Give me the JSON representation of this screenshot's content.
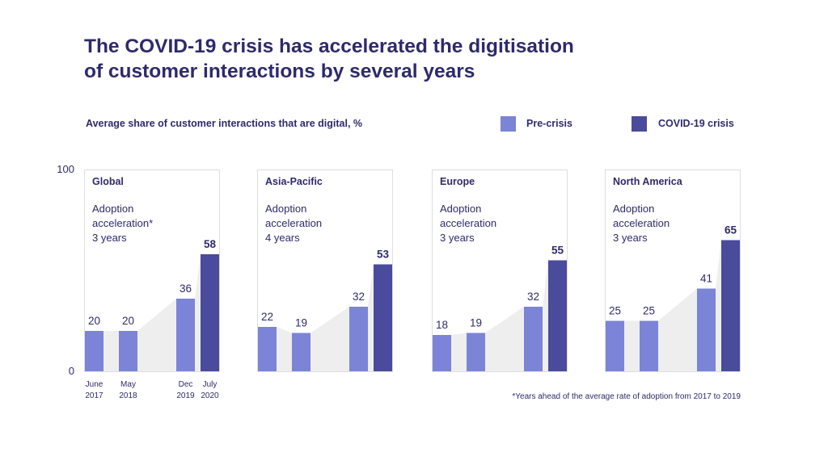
{
  "title_line1": "The COVID-19 crisis has accelerated the digitisation",
  "title_line2": "of customer interactions by several years",
  "subtitle": "Average share of customer interactions that are digital, %",
  "legend": {
    "pre_label": "Pre-crisis",
    "covid_label": "COVID-19 crisis"
  },
  "colors": {
    "pre": "#7b84d6",
    "covid": "#4a4b9c",
    "text": "#2e2a6b",
    "shade": "#eeeeee",
    "panel_border": "#dddde8"
  },
  "footnote": "*Years ahead of the average rate of adoption from 2017 to 2019",
  "chart_data": {
    "type": "bar",
    "ylim": [
      0,
      100
    ],
    "y_ticks": [
      "100",
      "0"
    ],
    "categories": [
      "June 2017",
      "May 2018",
      "Dec 2019",
      "July 2020"
    ],
    "x_labels": [
      [
        "June",
        "2017"
      ],
      [
        "May",
        "2018"
      ],
      [
        "Dec",
        "2019"
      ],
      [
        "July",
        "2020"
      ]
    ],
    "bar_kinds": [
      "pre",
      "pre",
      "pre",
      "covid"
    ],
    "panels": [
      {
        "region": "Global",
        "annotation": [
          "Adoption",
          "acceleration*",
          "3 years"
        ],
        "values": [
          20,
          20,
          36,
          58
        ]
      },
      {
        "region": "Asia-Pacific",
        "annotation": [
          "Adoption",
          "acceleration",
          "4 years"
        ],
        "values": [
          22,
          19,
          32,
          53
        ]
      },
      {
        "region": "Europe",
        "annotation": [
          "Adoption",
          "acceleration",
          "3 years"
        ],
        "values": [
          18,
          19,
          32,
          55
        ]
      },
      {
        "region": "North America",
        "annotation": [
          "Adoption",
          "acceleration",
          "3 years"
        ],
        "values": [
          25,
          25,
          41,
          65
        ]
      }
    ]
  }
}
